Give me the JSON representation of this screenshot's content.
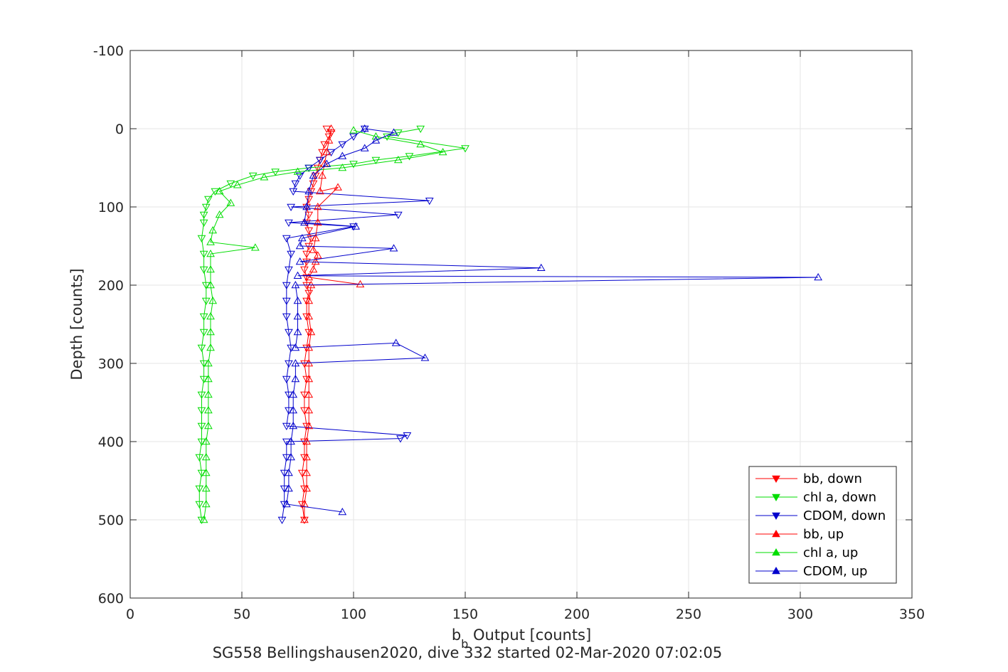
{
  "chart_data": {
    "type": "line",
    "title": "",
    "xlabel": {
      "main": "b",
      "sub": "b",
      "rest": " Output [counts]"
    },
    "ylabel": "Depth [counts]",
    "subtitle": "SG558 Bellingshausen2020, dive 332 started 02-Mar-2020 07:02:05",
    "xlim": [
      0,
      350
    ],
    "ylim": [
      -100,
      600
    ],
    "y_reversed": true,
    "grid": true,
    "xticks": [
      "0",
      "50",
      "100",
      "150",
      "200",
      "250",
      "300",
      "350"
    ],
    "yticks": [
      "-100",
      "0",
      "100",
      "200",
      "300",
      "400",
      "500",
      "600"
    ],
    "legend_position": "bottom-right",
    "series": [
      {
        "name": "bb, down",
        "color": "#ff0000",
        "marker": "triangle-down",
        "points": [
          [
            88,
            0
          ],
          [
            90,
            5
          ],
          [
            89,
            10
          ],
          [
            87,
            20
          ],
          [
            86,
            30
          ],
          [
            85,
            40
          ],
          [
            84,
            50
          ],
          [
            83,
            60
          ],
          [
            82,
            70
          ],
          [
            81,
            80
          ],
          [
            80,
            90
          ],
          [
            79,
            100
          ],
          [
            80,
            110
          ],
          [
            79,
            120
          ],
          [
            80,
            130
          ],
          [
            81,
            140
          ],
          [
            80,
            150
          ],
          [
            79,
            160
          ],
          [
            79,
            170
          ],
          [
            78,
            180
          ],
          [
            79,
            190
          ],
          [
            79,
            200
          ],
          [
            80,
            210
          ],
          [
            79,
            220
          ],
          [
            79,
            240
          ],
          [
            80,
            260
          ],
          [
            79,
            280
          ],
          [
            78,
            300
          ],
          [
            79,
            320
          ],
          [
            78,
            340
          ],
          [
            78,
            360
          ],
          [
            79,
            380
          ],
          [
            78,
            400
          ],
          [
            78,
            420
          ],
          [
            77,
            440
          ],
          [
            78,
            460
          ],
          [
            77,
            480
          ],
          [
            78,
            500
          ]
        ]
      },
      {
        "name": "chl a, down",
        "color": "#00dd00",
        "marker": "triangle-down",
        "points": [
          [
            130,
            0
          ],
          [
            120,
            5
          ],
          [
            115,
            10
          ],
          [
            150,
            25
          ],
          [
            125,
            35
          ],
          [
            110,
            40
          ],
          [
            100,
            45
          ],
          [
            80,
            50
          ],
          [
            65,
            55
          ],
          [
            55,
            60
          ],
          [
            45,
            70
          ],
          [
            38,
            80
          ],
          [
            35,
            90
          ],
          [
            34,
            100
          ],
          [
            33,
            110
          ],
          [
            33,
            120
          ],
          [
            32,
            140
          ],
          [
            33,
            160
          ],
          [
            33,
            180
          ],
          [
            34,
            200
          ],
          [
            34,
            220
          ],
          [
            33,
            240
          ],
          [
            33,
            260
          ],
          [
            32,
            280
          ],
          [
            33,
            300
          ],
          [
            33,
            320
          ],
          [
            32,
            340
          ],
          [
            32,
            360
          ],
          [
            32,
            380
          ],
          [
            32,
            400
          ],
          [
            31,
            420
          ],
          [
            32,
            440
          ],
          [
            31,
            460
          ],
          [
            31,
            480
          ],
          [
            32,
            500
          ]
        ]
      },
      {
        "name": "CDOM, down",
        "color": "#0000cc",
        "marker": "triangle-down",
        "points": [
          [
            105,
            0
          ],
          [
            100,
            10
          ],
          [
            95,
            20
          ],
          [
            90,
            30
          ],
          [
            85,
            40
          ],
          [
            80,
            50
          ],
          [
            76,
            60
          ],
          [
            74,
            70
          ],
          [
            73,
            80
          ],
          [
            134,
            92
          ],
          [
            72,
            100
          ],
          [
            120,
            110
          ],
          [
            71,
            120
          ],
          [
            100,
            125
          ],
          [
            70,
            140
          ],
          [
            72,
            160
          ],
          [
            71,
            180
          ],
          [
            70,
            200
          ],
          [
            70,
            220
          ],
          [
            70,
            240
          ],
          [
            71,
            260
          ],
          [
            72,
            280
          ],
          [
            71,
            300
          ],
          [
            70,
            320
          ],
          [
            71,
            340
          ],
          [
            71,
            360
          ],
          [
            70,
            380
          ],
          [
            124,
            392
          ],
          [
            121,
            396
          ],
          [
            70,
            400
          ],
          [
            70,
            420
          ],
          [
            69,
            440
          ],
          [
            69,
            460
          ],
          [
            69,
            480
          ],
          [
            68,
            500
          ]
        ]
      },
      {
        "name": "bb, up",
        "color": "#ff0000",
        "marker": "triangle-up",
        "points": [
          [
            78,
            500
          ],
          [
            78,
            480
          ],
          [
            79,
            460
          ],
          [
            79,
            440
          ],
          [
            79,
            420
          ],
          [
            79,
            400
          ],
          [
            80,
            380
          ],
          [
            80,
            360
          ],
          [
            80,
            340
          ],
          [
            80,
            320
          ],
          [
            80,
            300
          ],
          [
            80,
            280
          ],
          [
            81,
            260
          ],
          [
            80,
            240
          ],
          [
            80,
            220
          ],
          [
            81,
            200
          ],
          [
            103,
            199
          ],
          [
            80,
            190
          ],
          [
            82,
            180
          ],
          [
            83,
            170
          ],
          [
            84,
            162
          ],
          [
            82,
            155
          ],
          [
            83,
            140
          ],
          [
            84,
            120
          ],
          [
            84,
            100
          ],
          [
            93,
            75
          ],
          [
            85,
            80
          ],
          [
            86,
            60
          ],
          [
            87,
            45
          ],
          [
            88,
            30
          ],
          [
            89,
            15
          ],
          [
            90,
            0
          ]
        ]
      },
      {
        "name": "chl a, up",
        "color": "#00dd00",
        "marker": "triangle-up",
        "points": [
          [
            33,
            500
          ],
          [
            34,
            480
          ],
          [
            34,
            460
          ],
          [
            34,
            440
          ],
          [
            34,
            420
          ],
          [
            34,
            400
          ],
          [
            35,
            380
          ],
          [
            35,
            360
          ],
          [
            35,
            340
          ],
          [
            35,
            320
          ],
          [
            35,
            300
          ],
          [
            36,
            280
          ],
          [
            36,
            260
          ],
          [
            36,
            240
          ],
          [
            37,
            220
          ],
          [
            36,
            200
          ],
          [
            36,
            180
          ],
          [
            36,
            160
          ],
          [
            56,
            152
          ],
          [
            36,
            145
          ],
          [
            37,
            130
          ],
          [
            40,
            110
          ],
          [
            45,
            95
          ],
          [
            40,
            80
          ],
          [
            48,
            72
          ],
          [
            60,
            62
          ],
          [
            75,
            55
          ],
          [
            95,
            50
          ],
          [
            120,
            40
          ],
          [
            140,
            30
          ],
          [
            130,
            20
          ],
          [
            110,
            10
          ],
          [
            100,
            2
          ]
        ]
      },
      {
        "name": "CDOM, up",
        "color": "#0000cc",
        "marker": "triangle-up",
        "points": [
          [
            95,
            490
          ],
          [
            70,
            480
          ],
          [
            71,
            460
          ],
          [
            71,
            440
          ],
          [
            72,
            420
          ],
          [
            72,
            400
          ],
          [
            73,
            380
          ],
          [
            73,
            360
          ],
          [
            73,
            340
          ],
          [
            74,
            320
          ],
          [
            74,
            300
          ],
          [
            132,
            293
          ],
          [
            119,
            274
          ],
          [
            74,
            280
          ],
          [
            75,
            260
          ],
          [
            75,
            240
          ],
          [
            75,
            220
          ],
          [
            74,
            200
          ],
          [
            308,
            190
          ],
          [
            75,
            188
          ],
          [
            184,
            178
          ],
          [
            76,
            170
          ],
          [
            118,
            153
          ],
          [
            76,
            150
          ],
          [
            77,
            140
          ],
          [
            101,
            125
          ],
          [
            78,
            120
          ],
          [
            79,
            100
          ],
          [
            80,
            80
          ],
          [
            82,
            60
          ],
          [
            88,
            45
          ],
          [
            95,
            35
          ],
          [
            105,
            25
          ],
          [
            110,
            15
          ],
          [
            118,
            5
          ],
          [
            105,
            0
          ]
        ]
      }
    ]
  }
}
